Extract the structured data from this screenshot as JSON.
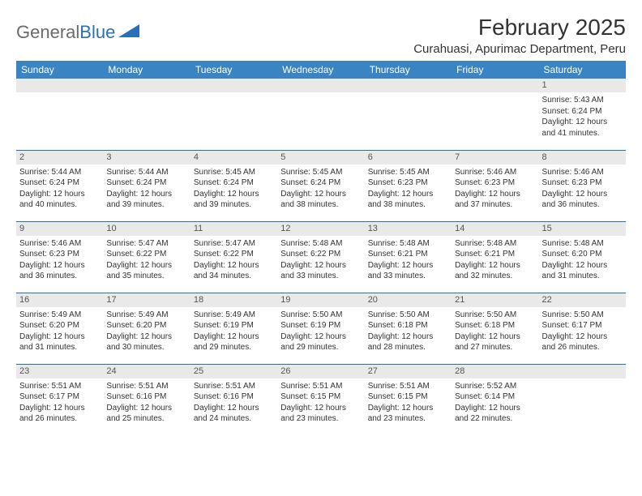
{
  "logo": {
    "text1": "General",
    "text2": "Blue",
    "accent_color": "#2a70b8",
    "gray_color": "#6b6b6b"
  },
  "title": "February 2025",
  "location": "Curahuasi, Apurimac Department, Peru",
  "header_bg": "#3b84c4",
  "header_fg": "#ffffff",
  "divider_color": "#2a70b8",
  "daynum_bg": "#e9e9e9",
  "columns": [
    "Sunday",
    "Monday",
    "Tuesday",
    "Wednesday",
    "Thursday",
    "Friday",
    "Saturday"
  ],
  "weeks": [
    [
      {
        "n": "",
        "lines": []
      },
      {
        "n": "",
        "lines": []
      },
      {
        "n": "",
        "lines": []
      },
      {
        "n": "",
        "lines": []
      },
      {
        "n": "",
        "lines": []
      },
      {
        "n": "",
        "lines": []
      },
      {
        "n": "1",
        "lines": [
          "Sunrise: 5:43 AM",
          "Sunset: 6:24 PM",
          "Daylight: 12 hours and 41 minutes."
        ]
      }
    ],
    [
      {
        "n": "2",
        "lines": [
          "Sunrise: 5:44 AM",
          "Sunset: 6:24 PM",
          "Daylight: 12 hours and 40 minutes."
        ]
      },
      {
        "n": "3",
        "lines": [
          "Sunrise: 5:44 AM",
          "Sunset: 6:24 PM",
          "Daylight: 12 hours and 39 minutes."
        ]
      },
      {
        "n": "4",
        "lines": [
          "Sunrise: 5:45 AM",
          "Sunset: 6:24 PM",
          "Daylight: 12 hours and 39 minutes."
        ]
      },
      {
        "n": "5",
        "lines": [
          "Sunrise: 5:45 AM",
          "Sunset: 6:24 PM",
          "Daylight: 12 hours and 38 minutes."
        ]
      },
      {
        "n": "6",
        "lines": [
          "Sunrise: 5:45 AM",
          "Sunset: 6:23 PM",
          "Daylight: 12 hours and 38 minutes."
        ]
      },
      {
        "n": "7",
        "lines": [
          "Sunrise: 5:46 AM",
          "Sunset: 6:23 PM",
          "Daylight: 12 hours and 37 minutes."
        ]
      },
      {
        "n": "8",
        "lines": [
          "Sunrise: 5:46 AM",
          "Sunset: 6:23 PM",
          "Daylight: 12 hours and 36 minutes."
        ]
      }
    ],
    [
      {
        "n": "9",
        "lines": [
          "Sunrise: 5:46 AM",
          "Sunset: 6:23 PM",
          "Daylight: 12 hours and 36 minutes."
        ]
      },
      {
        "n": "10",
        "lines": [
          "Sunrise: 5:47 AM",
          "Sunset: 6:22 PM",
          "Daylight: 12 hours and 35 minutes."
        ]
      },
      {
        "n": "11",
        "lines": [
          "Sunrise: 5:47 AM",
          "Sunset: 6:22 PM",
          "Daylight: 12 hours and 34 minutes."
        ]
      },
      {
        "n": "12",
        "lines": [
          "Sunrise: 5:48 AM",
          "Sunset: 6:22 PM",
          "Daylight: 12 hours and 33 minutes."
        ]
      },
      {
        "n": "13",
        "lines": [
          "Sunrise: 5:48 AM",
          "Sunset: 6:21 PM",
          "Daylight: 12 hours and 33 minutes."
        ]
      },
      {
        "n": "14",
        "lines": [
          "Sunrise: 5:48 AM",
          "Sunset: 6:21 PM",
          "Daylight: 12 hours and 32 minutes."
        ]
      },
      {
        "n": "15",
        "lines": [
          "Sunrise: 5:48 AM",
          "Sunset: 6:20 PM",
          "Daylight: 12 hours and 31 minutes."
        ]
      }
    ],
    [
      {
        "n": "16",
        "lines": [
          "Sunrise: 5:49 AM",
          "Sunset: 6:20 PM",
          "Daylight: 12 hours and 31 minutes."
        ]
      },
      {
        "n": "17",
        "lines": [
          "Sunrise: 5:49 AM",
          "Sunset: 6:20 PM",
          "Daylight: 12 hours and 30 minutes."
        ]
      },
      {
        "n": "18",
        "lines": [
          "Sunrise: 5:49 AM",
          "Sunset: 6:19 PM",
          "Daylight: 12 hours and 29 minutes."
        ]
      },
      {
        "n": "19",
        "lines": [
          "Sunrise: 5:50 AM",
          "Sunset: 6:19 PM",
          "Daylight: 12 hours and 29 minutes."
        ]
      },
      {
        "n": "20",
        "lines": [
          "Sunrise: 5:50 AM",
          "Sunset: 6:18 PM",
          "Daylight: 12 hours and 28 minutes."
        ]
      },
      {
        "n": "21",
        "lines": [
          "Sunrise: 5:50 AM",
          "Sunset: 6:18 PM",
          "Daylight: 12 hours and 27 minutes."
        ]
      },
      {
        "n": "22",
        "lines": [
          "Sunrise: 5:50 AM",
          "Sunset: 6:17 PM",
          "Daylight: 12 hours and 26 minutes."
        ]
      }
    ],
    [
      {
        "n": "23",
        "lines": [
          "Sunrise: 5:51 AM",
          "Sunset: 6:17 PM",
          "Daylight: 12 hours and 26 minutes."
        ]
      },
      {
        "n": "24",
        "lines": [
          "Sunrise: 5:51 AM",
          "Sunset: 6:16 PM",
          "Daylight: 12 hours and 25 minutes."
        ]
      },
      {
        "n": "25",
        "lines": [
          "Sunrise: 5:51 AM",
          "Sunset: 6:16 PM",
          "Daylight: 12 hours and 24 minutes."
        ]
      },
      {
        "n": "26",
        "lines": [
          "Sunrise: 5:51 AM",
          "Sunset: 6:15 PM",
          "Daylight: 12 hours and 23 minutes."
        ]
      },
      {
        "n": "27",
        "lines": [
          "Sunrise: 5:51 AM",
          "Sunset: 6:15 PM",
          "Daylight: 12 hours and 23 minutes."
        ]
      },
      {
        "n": "28",
        "lines": [
          "Sunrise: 5:52 AM",
          "Sunset: 6:14 PM",
          "Daylight: 12 hours and 22 minutes."
        ]
      },
      {
        "n": "",
        "lines": []
      }
    ]
  ]
}
